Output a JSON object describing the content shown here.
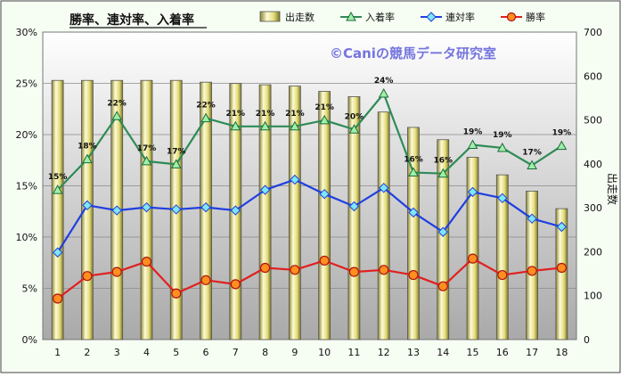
{
  "chart_data": {
    "type": "bar-line-combo",
    "title": "勝率、連対率、入着率",
    "watermark": "©Caniの競馬データ研究室",
    "y2label": "出走数",
    "categories": [
      "1",
      "2",
      "3",
      "4",
      "5",
      "6",
      "7",
      "8",
      "9",
      "10",
      "11",
      "12",
      "13",
      "14",
      "15",
      "16",
      "17",
      "18"
    ],
    "y_left": {
      "min": 0,
      "max": 30,
      "step": 5,
      "unit": "%"
    },
    "y_right": {
      "min": 0,
      "max": 700,
      "step": 100
    },
    "legend_position": "top",
    "grid": true,
    "series": [
      {
        "name": "出走数",
        "kind": "bar",
        "axis": "right",
        "color": "#d8d070",
        "values": [
          590,
          590,
          590,
          590,
          590,
          586,
          583,
          580,
          577,
          565,
          553,
          518,
          483,
          455,
          415,
          375,
          338,
          298
        ]
      },
      {
        "name": "入着率",
        "kind": "line",
        "axis": "left",
        "color": "#2e8b57",
        "marker": "triangle",
        "values": [
          14.6,
          17.6,
          21.8,
          17.4,
          17.1,
          21.6,
          20.8,
          20.8,
          20.8,
          21.4,
          20.5,
          24.0,
          16.3,
          16.2,
          19.0,
          18.7,
          17.0,
          18.9
        ],
        "labels": [
          "15%",
          "18%",
          "22%",
          "17%",
          "17%",
          "22%",
          "21%",
          "21%",
          "21%",
          "21%",
          "20%",
          "24%",
          "16%",
          "16%",
          "19%",
          "19%",
          "17%",
          "19%"
        ]
      },
      {
        "name": "連対率",
        "kind": "line",
        "axis": "left",
        "color": "#1f3fe0",
        "marker": "diamond",
        "values": [
          8.5,
          13.1,
          12.6,
          12.9,
          12.7,
          12.9,
          12.6,
          14.6,
          15.6,
          14.2,
          13.0,
          14.8,
          12.4,
          10.5,
          14.4,
          13.8,
          11.8,
          11.0
        ]
      },
      {
        "name": "勝率",
        "kind": "line",
        "axis": "left",
        "color": "#e02020",
        "marker": "circle",
        "values": [
          4.0,
          6.2,
          6.6,
          7.6,
          4.5,
          5.8,
          5.4,
          7.0,
          6.8,
          7.7,
          6.6,
          6.8,
          6.3,
          5.2,
          7.9,
          6.3,
          6.7,
          7.0
        ]
      }
    ]
  }
}
